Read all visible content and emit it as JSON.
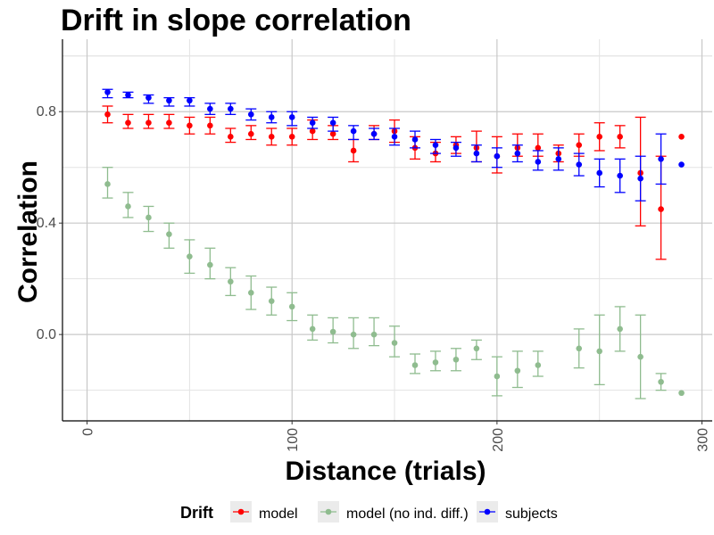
{
  "chart_data": {
    "type": "scatter",
    "title": "Drift in slope correlation",
    "xlabel": "Distance (trials)",
    "ylabel": "Correlation",
    "xlim": [
      -12,
      305
    ],
    "ylim": [
      -0.31,
      1.06
    ],
    "x_ticks": [
      0,
      100,
      200,
      300
    ],
    "x_tick_labels": [
      "0",
      "100",
      "200",
      "300"
    ],
    "y_ticks": [
      0.0,
      0.4,
      0.8
    ],
    "y_tick_labels": [
      "0.0",
      "0.4",
      "0.8"
    ],
    "grid": true,
    "legend": {
      "title": "Drift",
      "position": "bottom"
    },
    "x": [
      10,
      20,
      30,
      40,
      50,
      60,
      70,
      80,
      90,
      100,
      110,
      120,
      130,
      140,
      150,
      160,
      170,
      180,
      190,
      200,
      210,
      220,
      230,
      240,
      250,
      260,
      270,
      280,
      290
    ],
    "series": [
      {
        "name": "model",
        "color": "#ff0000",
        "y": [
          0.79,
          0.76,
          0.76,
          0.76,
          0.75,
          0.75,
          0.71,
          0.72,
          0.71,
          0.71,
          0.73,
          0.72,
          0.66,
          0.72,
          0.73,
          0.67,
          0.65,
          0.68,
          0.67,
          0.64,
          0.67,
          0.67,
          0.65,
          0.68,
          0.71,
          0.71,
          0.58,
          0.45,
          0.71
        ],
        "lower": [
          0.76,
          0.74,
          0.74,
          0.74,
          0.72,
          0.72,
          0.69,
          0.7,
          0.68,
          0.68,
          0.7,
          0.7,
          0.62,
          0.7,
          0.69,
          0.63,
          0.62,
          0.65,
          0.62,
          0.58,
          0.64,
          0.64,
          0.62,
          0.64,
          0.66,
          0.67,
          0.39,
          0.27,
          null
        ],
        "upper": [
          0.82,
          0.79,
          0.79,
          0.79,
          0.78,
          0.78,
          0.74,
          0.75,
          0.74,
          0.74,
          0.77,
          0.75,
          0.7,
          0.75,
          0.77,
          0.71,
          0.69,
          0.71,
          0.73,
          0.71,
          0.72,
          0.72,
          0.68,
          0.72,
          0.76,
          0.75,
          0.78,
          0.64,
          null
        ]
      },
      {
        "name": "model (no ind. diff.)",
        "color": "#8fbc8f",
        "y": [
          0.54,
          0.46,
          0.42,
          0.36,
          0.28,
          0.25,
          0.19,
          0.15,
          0.12,
          0.1,
          0.02,
          0.01,
          0.0,
          0.0,
          -0.03,
          -0.11,
          -0.1,
          -0.09,
          -0.05,
          -0.15,
          -0.13,
          -0.11,
          null,
          -0.05,
          -0.06,
          0.02,
          -0.08,
          -0.17,
          -0.21
        ],
        "lower": [
          0.49,
          0.42,
          0.37,
          0.31,
          0.22,
          0.2,
          0.14,
          0.09,
          0.07,
          0.05,
          -0.02,
          -0.03,
          -0.05,
          -0.04,
          -0.08,
          -0.14,
          -0.13,
          -0.13,
          -0.09,
          -0.22,
          -0.19,
          -0.15,
          null,
          -0.12,
          -0.18,
          -0.06,
          -0.23,
          -0.2,
          null
        ],
        "upper": [
          0.6,
          0.51,
          0.46,
          0.4,
          0.34,
          0.31,
          0.24,
          0.21,
          0.17,
          0.15,
          0.07,
          0.06,
          0.06,
          0.06,
          0.03,
          -0.07,
          -0.06,
          -0.05,
          -0.02,
          -0.08,
          -0.06,
          -0.06,
          null,
          0.02,
          0.07,
          0.1,
          0.07,
          -0.14,
          null
        ]
      },
      {
        "name": "subjects",
        "color": "#0000ff",
        "y": [
          0.87,
          0.86,
          0.85,
          0.84,
          0.84,
          0.81,
          0.81,
          0.79,
          0.78,
          0.78,
          0.76,
          0.76,
          0.73,
          0.72,
          0.71,
          0.7,
          0.68,
          0.67,
          0.65,
          0.64,
          0.65,
          0.62,
          0.63,
          0.61,
          0.58,
          0.57,
          0.56,
          0.63,
          0.61
        ],
        "lower": [
          0.85,
          0.85,
          0.83,
          0.82,
          0.82,
          0.79,
          0.79,
          0.77,
          0.76,
          0.75,
          0.74,
          0.73,
          0.7,
          0.7,
          0.68,
          0.67,
          0.65,
          0.64,
          0.62,
          0.6,
          0.62,
          0.59,
          0.59,
          0.57,
          0.53,
          0.51,
          0.48,
          0.54,
          null
        ],
        "upper": [
          0.88,
          0.87,
          0.86,
          0.85,
          0.85,
          0.83,
          0.83,
          0.81,
          0.8,
          0.8,
          0.78,
          0.78,
          0.75,
          0.74,
          0.74,
          0.73,
          0.7,
          0.69,
          0.68,
          0.67,
          0.68,
          0.66,
          0.67,
          0.65,
          0.63,
          0.63,
          0.64,
          0.72,
          null
        ]
      }
    ]
  }
}
